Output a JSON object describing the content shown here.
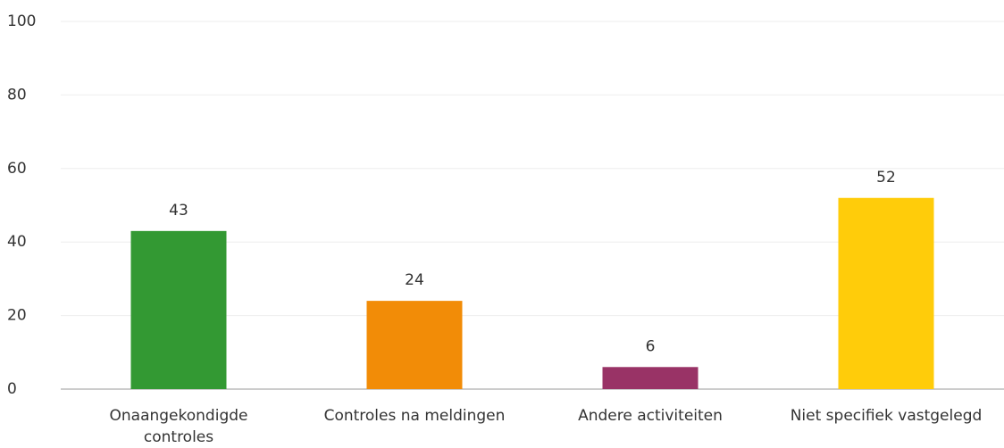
{
  "chart_data": {
    "type": "bar",
    "categories": [
      "Onaangekondigde controles",
      "Controles na meldingen",
      "Andere activiteiten",
      "Niet specifiek vastgelegd"
    ],
    "values": [
      43,
      24,
      6,
      52
    ],
    "colors": [
      "#339933",
      "#f28c07",
      "#993366",
      "#ffcc0a"
    ],
    "ylim": [
      0,
      100
    ],
    "yticks": [
      0,
      20,
      40,
      60,
      80,
      100
    ],
    "grid": true
  }
}
